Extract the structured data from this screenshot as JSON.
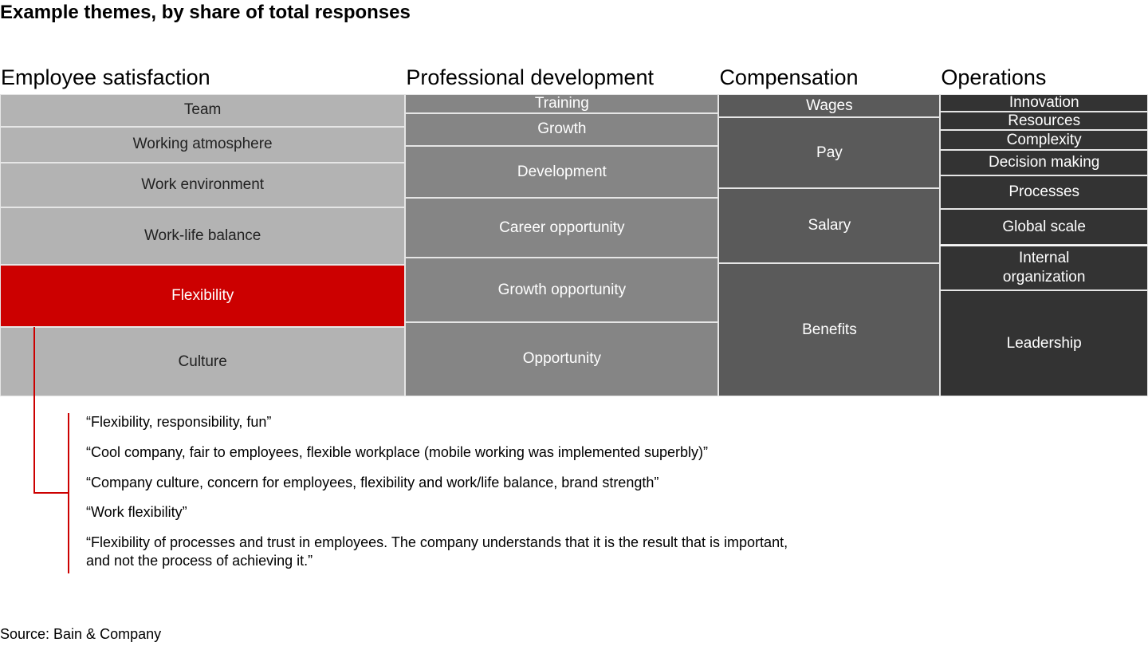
{
  "chart_data": {
    "type": "mekko",
    "title": "Example themes, by share of total responses",
    "highlight_color": "#cc0000",
    "highlighted_item": "Flexibility",
    "columns": [
      {
        "name": "Employee satisfaction",
        "color": "#b3b3b3",
        "text_color": "#222222",
        "items": [
          {
            "label": "Team",
            "share": 3.8
          },
          {
            "label": "Working atmosphere",
            "share": 4.2
          },
          {
            "label": "Work environment",
            "share": 5.2
          },
          {
            "label": "Work-life balance",
            "share": 6.7
          },
          {
            "label": "Flexibility",
            "share": 7.3
          },
          {
            "label": "Culture",
            "share": 8.1
          }
        ]
      },
      {
        "name": "Professional development",
        "color": "#858585",
        "text_color": "#ffffff",
        "items": [
          {
            "label": "Training",
            "share": 1.7
          },
          {
            "label": "Growth",
            "share": 3.0
          },
          {
            "label": "Development",
            "share": 4.7
          },
          {
            "label": "Career opportunity",
            "share": 5.4
          },
          {
            "label": "Growth opportunity",
            "share": 5.8
          },
          {
            "label": "Opportunity",
            "share": 6.7
          }
        ]
      },
      {
        "name": "Compensation",
        "color": "#5a5a5a",
        "text_color": "#ffffff",
        "items": [
          {
            "label": "Wages",
            "share": 1.5
          },
          {
            "label": "Pay",
            "share": 4.5
          },
          {
            "label": "Salary",
            "share": 4.8
          },
          {
            "label": "Benefits",
            "share": 8.5
          }
        ]
      },
      {
        "name": "Operations",
        "color": "#333333",
        "text_color": "#ffffff",
        "items": [
          {
            "label": "Innovation",
            "share": 1.05
          },
          {
            "label": "Resources",
            "share": 1.1
          },
          {
            "label": "Complexity",
            "share": 1.2
          },
          {
            "label": "Decision making",
            "share": 1.5
          },
          {
            "label": "Processes",
            "share": 2.05
          },
          {
            "label": "Global scale",
            "share": 2.15
          },
          {
            "label": "Internal\norganization",
            "share": 2.7
          },
          {
            "label": "Leadership",
            "share": 6.35
          }
        ]
      }
    ]
  },
  "quotes": [
    "“Flexibility, responsibility, fun”",
    "“Cool company, fair to employees, flexible workplace (mobile working was implemented superbly)”",
    "“Company culture, concern for employees, flexibility and work/life balance, brand strength”",
    "“Work flexibility”",
    "“Flexibility of processes and trust in employees. The company understands that it is the result that is important,\nand not the process of achieving it.”"
  ],
  "source": "Source: Bain & Company"
}
